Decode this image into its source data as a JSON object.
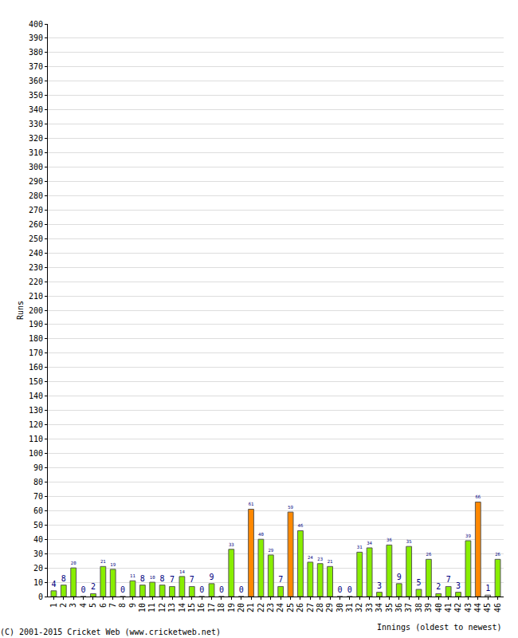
{
  "chart_data": {
    "type": "bar",
    "categories": [
      "1",
      "2",
      "3",
      "4",
      "5",
      "6",
      "7",
      "8",
      "9",
      "10",
      "11",
      "12",
      "13",
      "14",
      "15",
      "16",
      "17",
      "18",
      "19",
      "20",
      "21",
      "22",
      "23",
      "24",
      "25",
      "26",
      "27",
      "28",
      "29",
      "30",
      "31",
      "32",
      "33",
      "34",
      "35",
      "36",
      "37",
      "38",
      "39",
      "40",
      "41",
      "42",
      "43",
      "44",
      "45",
      "46"
    ],
    "values": [
      4,
      8,
      20,
      0,
      2,
      21,
      19,
      0,
      11,
      8,
      10,
      8,
      7,
      14,
      7,
      0,
      9,
      0,
      33,
      0,
      61,
      40,
      29,
      7,
      59,
      46,
      24,
      23,
      21,
      0,
      0,
      31,
      34,
      3,
      36,
      9,
      35,
      5,
      26,
      2,
      7,
      3,
      39,
      66,
      1,
      26
    ],
    "colors": [
      "#88ee00",
      "#88ee00",
      "#88ee00",
      "#88ee00",
      "#88ee00",
      "#88ee00",
      "#88ee00",
      "#88ee00",
      "#88ee00",
      "#88ee00",
      "#88ee00",
      "#88ee00",
      "#88ee00",
      "#88ee00",
      "#88ee00",
      "#88ee00",
      "#88ee00",
      "#88ee00",
      "#88ee00",
      "#88ee00",
      "#ff8800",
      "#88ee00",
      "#88ee00",
      "#88ee00",
      "#ff8800",
      "#88ee00",
      "#88ee00",
      "#88ee00",
      "#88ee00",
      "#88ee00",
      "#88ee00",
      "#88ee00",
      "#88ee00",
      "#88ee00",
      "#88ee00",
      "#88ee00",
      "#88ee00",
      "#88ee00",
      "#88ee00",
      "#88ee00",
      "#88ee00",
      "#88ee00",
      "#88ee00",
      "#ff8800",
      "#ffffff",
      "#88ee00"
    ],
    "x_label": "Innings (oldest to newest)",
    "y_label": "Runs",
    "ylim": [
      0,
      400
    ],
    "yticks": [
      0,
      10,
      20,
      30,
      40,
      50,
      60,
      70,
      80,
      90,
      100,
      110,
      120,
      130,
      140,
      150,
      160,
      170,
      180,
      190,
      200,
      210,
      220,
      230,
      240,
      250,
      260,
      270,
      280,
      290,
      300,
      310,
      320,
      330,
      340,
      350,
      360,
      370,
      380,
      390,
      400
    ],
    "grid": true,
    "data_labels": true,
    "annotations": [
      "(C) 2001-2015 Cricket Web (www.cricketweb.net)"
    ]
  }
}
